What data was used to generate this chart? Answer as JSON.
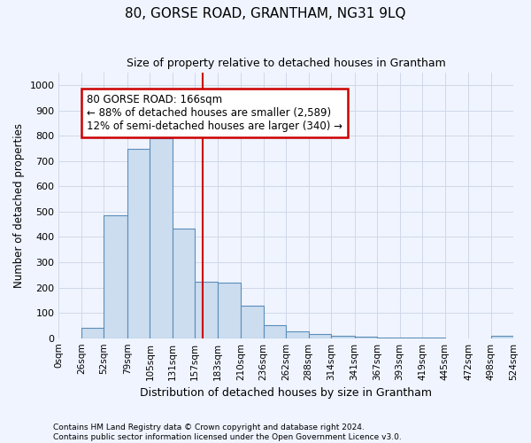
{
  "title": "80, GORSE ROAD, GRANTHAM, NG31 9LQ",
  "subtitle": "Size of property relative to detached houses in Grantham",
  "xlabel": "Distribution of detached houses by size in Grantham",
  "ylabel": "Number of detached properties",
  "footer_line1": "Contains HM Land Registry data © Crown copyright and database right 2024.",
  "footer_line2": "Contains public sector information licensed under the Open Government Licence v3.0.",
  "bin_edges": [
    0,
    26,
    52,
    79,
    105,
    131,
    157,
    183,
    210,
    236,
    262,
    288,
    314,
    341,
    367,
    393,
    419,
    445,
    472,
    498,
    524
  ],
  "bar_heights": [
    0,
    40,
    485,
    748,
    790,
    435,
    222,
    220,
    127,
    52,
    27,
    15,
    10,
    5,
    3,
    2,
    1,
    0,
    0,
    10
  ],
  "bar_color": "#ccddf0",
  "bar_edge_color": "#5b8db8",
  "grid_color": "#d0d8e8",
  "vline_x": 166,
  "vline_color": "#cc0000",
  "annotation_text": "80 GORSE ROAD: 166sqm\n← 88% of detached houses are smaller (2,589)\n12% of semi-detached houses are larger (340) →",
  "annotation_box_color": "#cc0000",
  "ylim": [
    0,
    1050
  ],
  "yticks": [
    0,
    100,
    200,
    300,
    400,
    500,
    600,
    700,
    800,
    900,
    1000
  ],
  "xlim": [
    0,
    524
  ],
  "background_color": "#f0f4ff"
}
